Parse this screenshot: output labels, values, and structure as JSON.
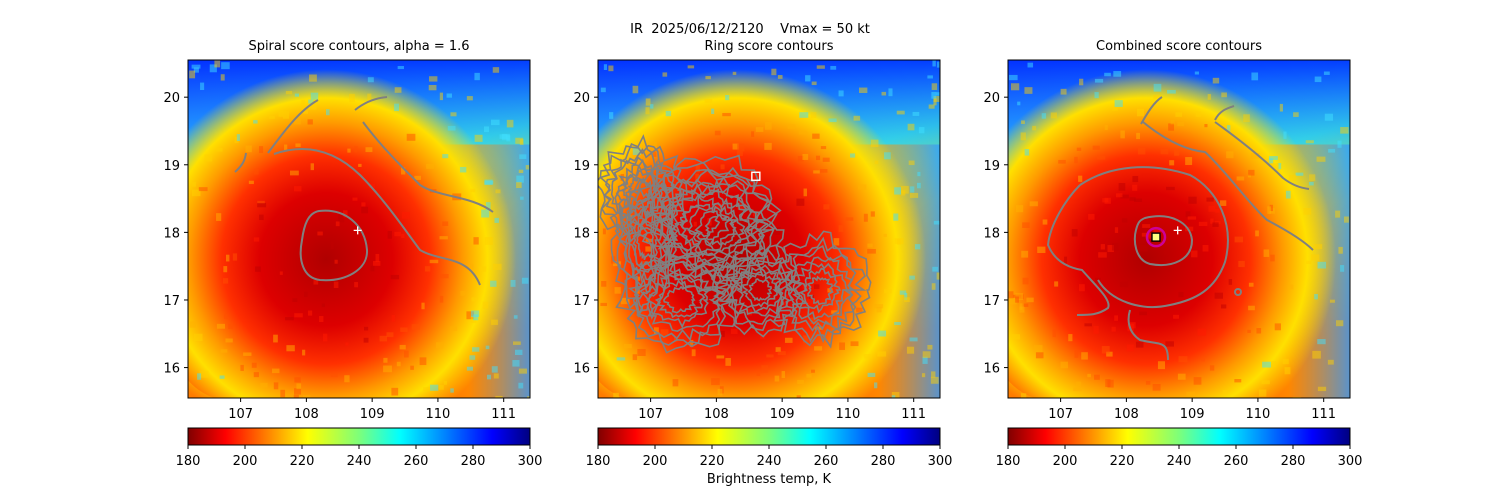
{
  "suptitle": "IR  2025/06/12/2120    Vmax = 50 kt",
  "colorbar_label": "Brightness temp, K",
  "chart_data": [
    {
      "type": "heatmap",
      "title": "Spiral score contours, alpha =  1.6",
      "x_ticks": [
        "107",
        "108",
        "109",
        "110",
        "111"
      ],
      "y_ticks": [
        "16",
        "17",
        "18",
        "19",
        "20"
      ],
      "xlim": [
        106.2,
        111.4
      ],
      "ylim": [
        15.55,
        20.55
      ],
      "colorbar": {
        "ticks": [
          "180",
          "200",
          "220",
          "240",
          "260",
          "280",
          "300"
        ],
        "range": [
          180,
          300
        ],
        "cmap": "jet_r"
      },
      "markers": [
        {
          "type": "plus",
          "lon": 108.78,
          "lat": 18.03
        }
      ],
      "contour_color": "#808080"
    },
    {
      "type": "heatmap",
      "title": "Ring score contours",
      "x_ticks": [
        "107",
        "108",
        "109",
        "110",
        "111"
      ],
      "y_ticks": [
        "16",
        "17",
        "18",
        "19",
        "20"
      ],
      "xlim": [
        106.2,
        111.4
      ],
      "ylim": [
        15.55,
        20.55
      ],
      "colorbar": {
        "ticks": [
          "180",
          "200",
          "220",
          "240",
          "260",
          "280",
          "300"
        ],
        "range": [
          180,
          300
        ],
        "cmap": "jet_r"
      },
      "markers": [
        {
          "type": "square",
          "lon": 108.6,
          "lat": 18.83
        }
      ],
      "contour_color": "#808080"
    },
    {
      "type": "heatmap",
      "title": "Combined score contours",
      "x_ticks": [
        "107",
        "108",
        "109",
        "110",
        "111"
      ],
      "y_ticks": [
        "16",
        "17",
        "18",
        "19",
        "20"
      ],
      "xlim": [
        106.2,
        111.4
      ],
      "ylim": [
        15.55,
        20.55
      ],
      "colorbar": {
        "ticks": [
          "180",
          "200",
          "220",
          "240",
          "260",
          "280",
          "300"
        ],
        "range": [
          180,
          300
        ],
        "cmap": "jet_r"
      },
      "markers": [
        {
          "type": "plus",
          "lon": 108.78,
          "lat": 18.03
        },
        {
          "type": "square",
          "lon": 108.45,
          "lat": 17.93
        },
        {
          "type": "circle",
          "lon": 108.45,
          "lat": 17.93
        }
      ],
      "contour_color": "#808080"
    }
  ]
}
